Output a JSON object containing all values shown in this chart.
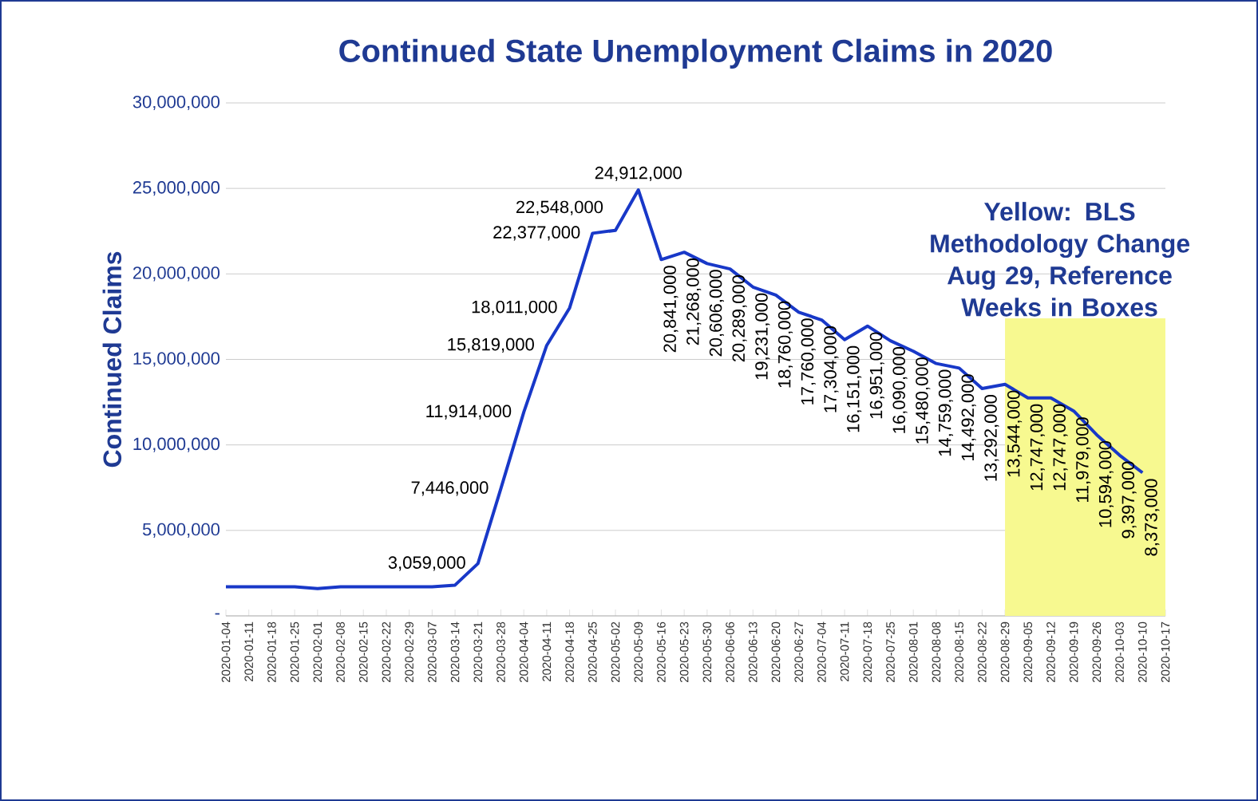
{
  "chart_data": {
    "type": "line",
    "title": "Continued State Unemployment Claims in 2020",
    "ylabel": "Continued  Claims",
    "categories": [
      "2020-01-04",
      "2020-01-11",
      "2020-01-18",
      "2020-01-25",
      "2020-02-01",
      "2020-02-08",
      "2020-02-15",
      "2020-02-22",
      "2020-02-29",
      "2020-03-07",
      "2020-03-14",
      "2020-03-21",
      "2020-03-28",
      "2020-04-04",
      "2020-04-11",
      "2020-04-18",
      "2020-04-25",
      "2020-05-02",
      "2020-05-09",
      "2020-05-16",
      "2020-05-23",
      "2020-05-30",
      "2020-06-06",
      "2020-06-13",
      "2020-06-20",
      "2020-06-27",
      "2020-07-04",
      "2020-07-11",
      "2020-07-18",
      "2020-07-25",
      "2020-08-01",
      "2020-08-08",
      "2020-08-15",
      "2020-08-22",
      "2020-08-29",
      "2020-09-05",
      "2020-09-12",
      "2020-09-19",
      "2020-09-26",
      "2020-10-03",
      "2020-10-10",
      "2020-10-17"
    ],
    "values": [
      1700000,
      1700000,
      1700000,
      1700000,
      1600000,
      1700000,
      1700000,
      1700000,
      1700000,
      1700000,
      1800000,
      3059000,
      7446000,
      11914000,
      15819000,
      18011000,
      22377000,
      22548000,
      24912000,
      20841000,
      21268000,
      20606000,
      20289000,
      19231000,
      18760000,
      17760000,
      17304000,
      16151000,
      16951000,
      16090000,
      15480000,
      14759000,
      14492000,
      13292000,
      13544000,
      12747000,
      12747000,
      11979000,
      10594000,
      9397000,
      8373000,
      null
    ],
    "value_labels": [
      null,
      null,
      null,
      null,
      null,
      null,
      null,
      null,
      null,
      null,
      null,
      "3,059,000",
      "7,446,000",
      "11,914,000",
      "15,819,000",
      "18,011,000",
      "22,377,000",
      "22,548,000",
      "24,912,000",
      "20,841,000",
      "21,268,000",
      "20,606,000",
      "20,289,000",
      "19,231,000",
      "18,760,000",
      "17,760,000",
      "17,304,000",
      "16,151,000",
      "16,951,000",
      "16,090,000",
      "15,480,000",
      "14,759,000",
      "14,492,000",
      "13,292,000",
      "13,544,000",
      "12,747,000",
      "12,747,000",
      "11,979,000",
      "10,594,000",
      "9,397,000",
      "8,373,000",
      null
    ],
    "color": "#1838c8",
    "ylim": [
      0,
      30000000
    ],
    "yticks": [
      {
        "value": 0,
        "label": "-"
      },
      {
        "value": 5000000,
        "label": "5,000,000"
      },
      {
        "value": 10000000,
        "label": "10,000,000"
      },
      {
        "value": 15000000,
        "label": "15,000,000"
      },
      {
        "value": 20000000,
        "label": "20,000,000"
      },
      {
        "value": 25000000,
        "label": "25,000,000"
      },
      {
        "value": 30000000,
        "label": "30,000,000"
      }
    ],
    "grid": "y",
    "marker": "none",
    "line_style": "solid",
    "bands": [
      {
        "axis": "x",
        "from": "2020-08-29",
        "to": "2020-10-17",
        "label": "Yellow: BLS Methodology Change Aug 29, Reference Weeks in Boxes",
        "color": "#f7f990"
      }
    ]
  }
}
